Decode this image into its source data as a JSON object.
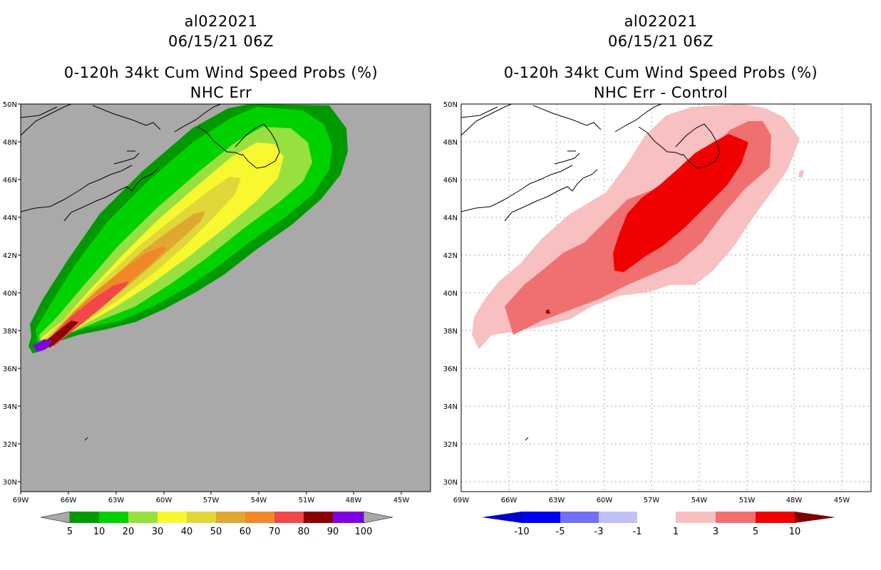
{
  "left_panel": {
    "title_line1": "al022021",
    "title_line2": "06/15/21 06Z",
    "title_line3": "0-120h 34kt Cum Wind Speed Probs (%)",
    "title_line4": "NHC Err",
    "colorbar_labels": [
      "5",
      "10",
      "20",
      "30",
      "40",
      "50",
      "60",
      "70",
      "80",
      "90",
      "100"
    ],
    "colorbar_colors": [
      "#009a00",
      "#00d200",
      "#98e040",
      "#f8f830",
      "#e0d838",
      "#e0a830",
      "#f08828",
      "#f04848",
      "#8c0000",
      "#8000e0"
    ],
    "background_color": "#a9a9a9"
  },
  "right_panel": {
    "title_line1": "al022021",
    "title_line2": "06/15/21 06Z",
    "title_line3": "0-120h 34kt Cum Wind Speed Probs (%)",
    "title_line4": "NHC Err - Control",
    "colorbar_labels": [
      "-10",
      "-5",
      "-3",
      "-1",
      "1",
      "3",
      "5",
      "10"
    ],
    "colorbar_colors": [
      "#0000cc",
      "#0000f0",
      "#7070f0",
      "#c0c0f8",
      "#ffffff",
      "#f8c0c0",
      "#f07070",
      "#f00000",
      "#800000"
    ]
  },
  "axes": {
    "lat_labels": [
      "50N",
      "48N",
      "46N",
      "44N",
      "42N",
      "40N",
      "38N",
      "36N",
      "34N",
      "32N",
      "30N"
    ],
    "lon_labels": [
      "69W",
      "66W",
      "63W",
      "60W",
      "57W",
      "54W",
      "51W",
      "48W",
      "45W"
    ]
  }
}
